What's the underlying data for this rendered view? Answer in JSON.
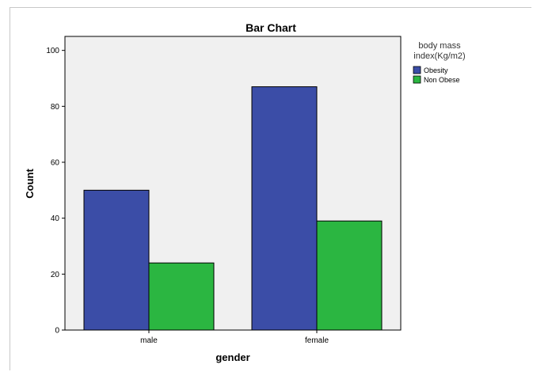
{
  "chart_data": {
    "type": "bar",
    "title": "Bar Chart",
    "xlabel": "gender",
    "ylabel": "Count",
    "categories": [
      "male",
      "female"
    ],
    "series": [
      {
        "name": "Obesity",
        "values": [
          50,
          87
        ],
        "color": "#3b4da7"
      },
      {
        "name": "Non Obese",
        "values": [
          24,
          39
        ],
        "color": "#2bb641"
      }
    ],
    "ylim": [
      0,
      105
    ],
    "yticks": [
      0,
      20,
      40,
      60,
      80,
      100
    ],
    "legend": {
      "title_line1": "body mass",
      "title_line2": "index(Kg/m2)",
      "placement": "right"
    },
    "grid": false,
    "plot_background": "#f0f0f0"
  }
}
